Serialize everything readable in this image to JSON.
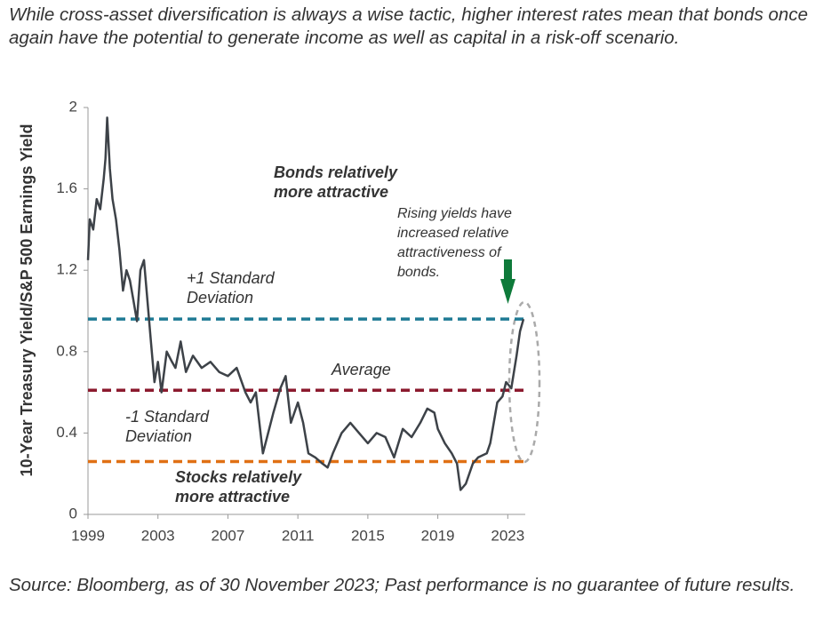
{
  "chart_data": {
    "type": "line",
    "title": "While cross-asset diversification is always a wise tactic, higher interest rates mean that bonds once again have the potential to generate income as well as capital in a risk-off scenario.",
    "y_label": "10-Year Treasury Yield/S&P 500 Earnings Yield",
    "source": "Source: Bloomberg, as of 30 November 2023; Past performance is no guarantee of future results.",
    "x": [
      1999.0,
      1999.1,
      1999.3,
      1999.5,
      1999.7,
      1999.9,
      2000.0,
      2000.1,
      2000.25,
      2000.4,
      2000.6,
      2000.8,
      2001.0,
      2001.2,
      2001.4,
      2001.6,
      2001.8,
      2002.0,
      2002.2,
      2002.4,
      2002.6,
      2002.8,
      2003.0,
      2003.2,
      2003.5,
      2003.8,
      2004.0,
      2004.3,
      2004.6,
      2005.0,
      2005.5,
      2006.0,
      2006.5,
      2007.0,
      2007.5,
      2008.0,
      2008.3,
      2008.6,
      2009.0,
      2009.3,
      2009.6,
      2010.0,
      2010.3,
      2010.6,
      2011.0,
      2011.3,
      2011.6,
      2012.0,
      2012.4,
      2012.7,
      2013.0,
      2013.5,
      2014.0,
      2014.5,
      2015.0,
      2015.5,
      2016.0,
      2016.5,
      2017.0,
      2017.5,
      2018.0,
      2018.4,
      2018.8,
      2019.0,
      2019.4,
      2019.8,
      2020.1,
      2020.3,
      2020.6,
      2021.0,
      2021.3,
      2021.8,
      2022.0,
      2022.4,
      2022.7,
      2022.9,
      2023.2,
      2023.5,
      2023.7,
      2023.9
    ],
    "series": [
      {
        "color": "#3d4248",
        "values": [
          1.25,
          1.45,
          1.4,
          1.55,
          1.5,
          1.65,
          1.75,
          1.95,
          1.7,
          1.55,
          1.45,
          1.3,
          1.1,
          1.2,
          1.15,
          1.05,
          0.95,
          1.2,
          1.25,
          1.05,
          0.85,
          0.65,
          0.75,
          0.6,
          0.8,
          0.75,
          0.72,
          0.85,
          0.7,
          0.78,
          0.72,
          0.75,
          0.7,
          0.68,
          0.72,
          0.6,
          0.55,
          0.6,
          0.3,
          0.4,
          0.5,
          0.62,
          0.68,
          0.45,
          0.55,
          0.45,
          0.3,
          0.28,
          0.25,
          0.23,
          0.3,
          0.4,
          0.45,
          0.4,
          0.35,
          0.4,
          0.38,
          0.28,
          0.42,
          0.38,
          0.45,
          0.52,
          0.5,
          0.42,
          0.35,
          0.3,
          0.25,
          0.12,
          0.15,
          0.25,
          0.28,
          0.3,
          0.35,
          0.55,
          0.58,
          0.65,
          0.62,
          0.78,
          0.9,
          0.96
        ]
      }
    ],
    "reference_lines": [
      {
        "value": 0.96,
        "label": "+1 Standard Deviation",
        "color": "#1f7a94"
      },
      {
        "value": 0.61,
        "label": "Average",
        "color": "#8b1a2e"
      },
      {
        "value": 0.26,
        "label": "-1 Standard Deviation",
        "color": "#e07014"
      }
    ],
    "annotations": [
      "Bonds relatively more attractive",
      "Stocks relatively more attractive",
      "Rising yields have increased relative attractiveness of bonds."
    ],
    "xlim": [
      1999,
      2024
    ],
    "xticks": [
      1999,
      2003,
      2007,
      2011,
      2015,
      2019,
      2023
    ],
    "ylim": [
      0,
      2
    ],
    "yticks": [
      0,
      0.4,
      0.8,
      1.2,
      1.6,
      2
    ]
  }
}
